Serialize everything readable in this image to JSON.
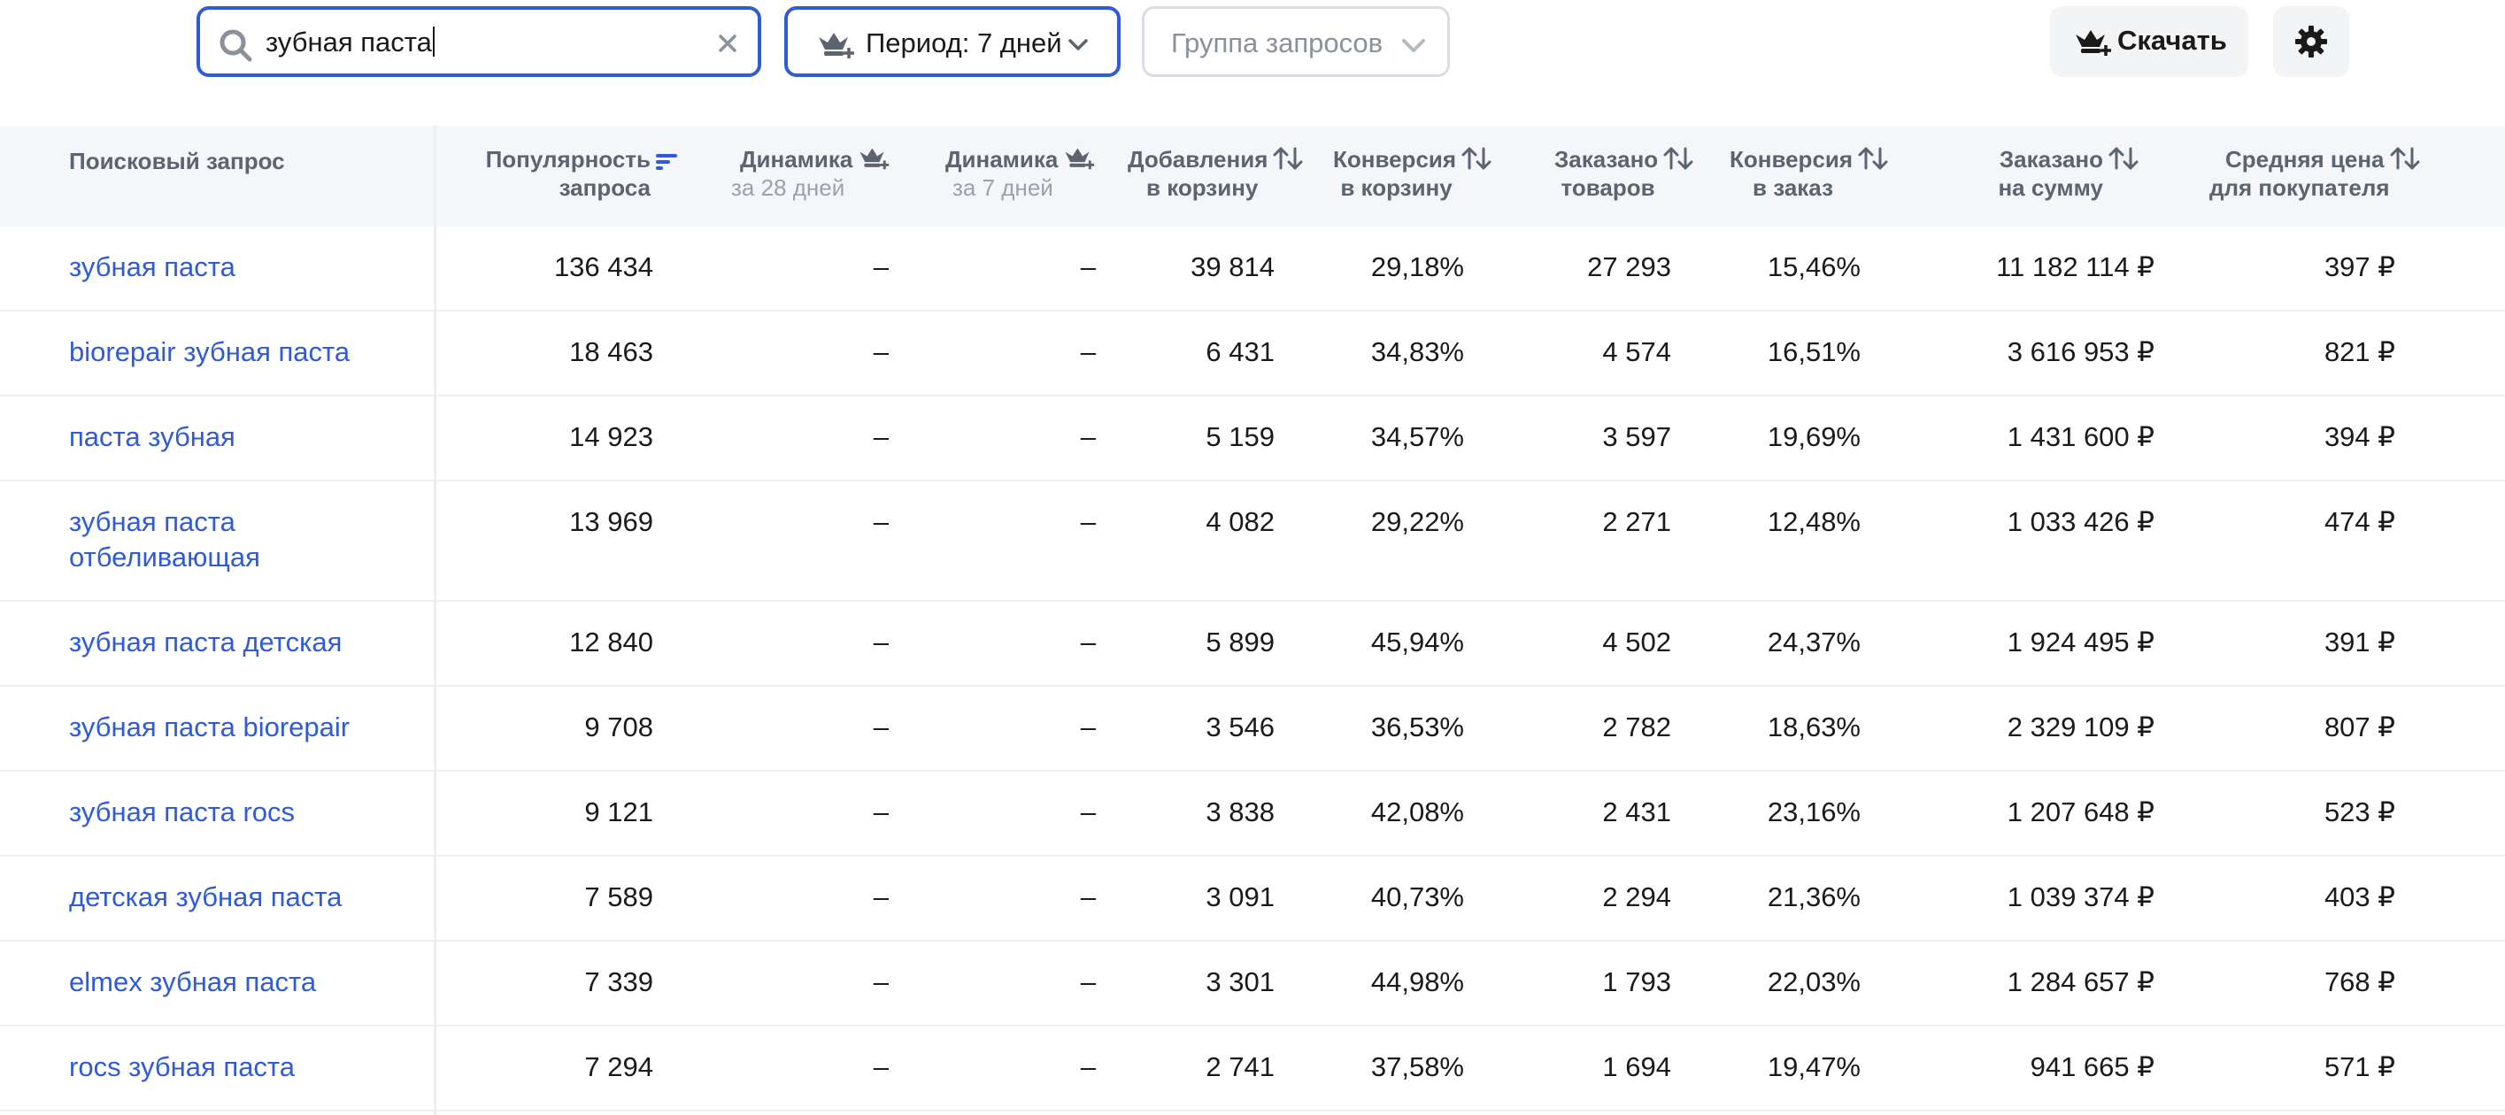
{
  "toolbar": {
    "search": {
      "value": "зубная паста",
      "icon": "search-icon"
    },
    "period": {
      "label": "Период: 7 дней",
      "icon": "crown-plus-icon"
    },
    "group": {
      "placeholder": "Группа запросов"
    },
    "download": {
      "label": "Скачать",
      "icon": "crown-plus-icon"
    },
    "settings": {
      "icon": "gear-icon"
    },
    "accent_color": "#2f5bd8"
  },
  "table": {
    "headers": {
      "query": "Поисковый запрос",
      "popularity": [
        "Популярность",
        "запроса"
      ],
      "dyn28": [
        "Динамика",
        "за 28 дней"
      ],
      "dyn7": [
        "Динамика",
        "за 7 дней"
      ],
      "cart_adds": [
        "Добавления",
        "в корзину"
      ],
      "conv_cart": [
        "Конверсия",
        "в корзину"
      ],
      "ordered_items": [
        "Заказано",
        "товаров"
      ],
      "conv_order": [
        "Конверсия",
        "в заказ"
      ],
      "ordered_sum": [
        "Заказано",
        "на сумму"
      ],
      "avg_price": [
        "Средняя цена",
        "для покупателя"
      ]
    },
    "rows": [
      {
        "query": "зубная паста",
        "popularity": "136 434",
        "dyn28": "–",
        "dyn7": "–",
        "cart_adds": "39 814",
        "conv_cart": "29,18%",
        "ordered_items": "27 293",
        "conv_order": "15,46%",
        "ordered_sum": "11 182 114 ₽",
        "avg_price": "397 ₽"
      },
      {
        "query": "biorepair зубная паста",
        "popularity": "18 463",
        "dyn28": "–",
        "dyn7": "–",
        "cart_adds": "6 431",
        "conv_cart": "34,83%",
        "ordered_items": "4 574",
        "conv_order": "16,51%",
        "ordered_sum": "3 616 953 ₽",
        "avg_price": "821 ₽"
      },
      {
        "query": "паста зубная",
        "popularity": "14 923",
        "dyn28": "–",
        "dyn7": "–",
        "cart_adds": "5 159",
        "conv_cart": "34,57%",
        "ordered_items": "3 597",
        "conv_order": "19,69%",
        "ordered_sum": "1 431 600 ₽",
        "avg_price": "394 ₽"
      },
      {
        "query": "зубная паста отбеливающая",
        "popularity": "13 969",
        "dyn28": "–",
        "dyn7": "–",
        "cart_adds": "4 082",
        "conv_cart": "29,22%",
        "ordered_items": "2 271",
        "conv_order": "12,48%",
        "ordered_sum": "1 033 426 ₽",
        "avg_price": "474 ₽"
      },
      {
        "query": "зубная паста детская",
        "popularity": "12 840",
        "dyn28": "–",
        "dyn7": "–",
        "cart_adds": "5 899",
        "conv_cart": "45,94%",
        "ordered_items": "4 502",
        "conv_order": "24,37%",
        "ordered_sum": "1 924 495 ₽",
        "avg_price": "391 ₽"
      },
      {
        "query": "зубная паста biorepair",
        "popularity": "9 708",
        "dyn28": "–",
        "dyn7": "–",
        "cart_adds": "3 546",
        "conv_cart": "36,53%",
        "ordered_items": "2 782",
        "conv_order": "18,63%",
        "ordered_sum": "2 329 109 ₽",
        "avg_price": "807 ₽"
      },
      {
        "query": "зубная паста rocs",
        "popularity": "9 121",
        "dyn28": "–",
        "dyn7": "–",
        "cart_adds": "3 838",
        "conv_cart": "42,08%",
        "ordered_items": "2 431",
        "conv_order": "23,16%",
        "ordered_sum": "1 207 648 ₽",
        "avg_price": "523 ₽"
      },
      {
        "query": "детская зубная паста",
        "popularity": "7 589",
        "dyn28": "–",
        "dyn7": "–",
        "cart_adds": "3 091",
        "conv_cart": "40,73%",
        "ordered_items": "2 294",
        "conv_order": "21,36%",
        "ordered_sum": "1 039 374 ₽",
        "avg_price": "403 ₽"
      },
      {
        "query": "elmex зубная паста",
        "popularity": "7 339",
        "dyn28": "–",
        "dyn7": "–",
        "cart_adds": "3 301",
        "conv_cart": "44,98%",
        "ordered_items": "1 793",
        "conv_order": "22,03%",
        "ordered_sum": "1 284 657 ₽",
        "avg_price": "768 ₽"
      },
      {
        "query": "rocs зубная паста",
        "popularity": "7 294",
        "dyn28": "–",
        "dyn7": "–",
        "cart_adds": "2 741",
        "conv_cart": "37,58%",
        "ordered_items": "1 694",
        "conv_order": "19,47%",
        "ordered_sum": "941 665 ₽",
        "avg_price": "571 ₽"
      }
    ]
  }
}
